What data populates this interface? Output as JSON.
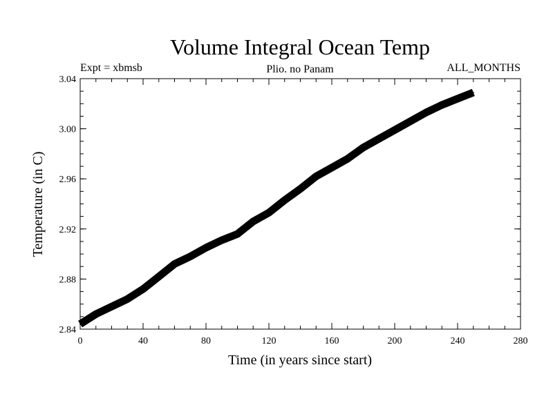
{
  "chart_data": {
    "type": "line",
    "title": "Volume Integral Ocean Temp",
    "subtitle_left": "Expt = xbmsb",
    "subtitle_center": "Plio. no Panam",
    "subtitle_right": "ALL_MONTHS",
    "xlabel": "Time (in years since start)",
    "ylabel": "Temperature (in C)",
    "xlim": [
      0,
      280
    ],
    "ylim": [
      2.84,
      3.04
    ],
    "xticks": [
      "0",
      "40",
      "80",
      "120",
      "160",
      "200",
      "240",
      "280"
    ],
    "yticks": [
      "2.84",
      "2.88",
      "2.92",
      "2.96",
      "3.00",
      "3.04"
    ],
    "grid": false,
    "line_color": "#000000",
    "series": [
      {
        "x": [
          0,
          10,
          20,
          30,
          40,
          50,
          60,
          70,
          80,
          90,
          100,
          110,
          120,
          130,
          140,
          150,
          160,
          170,
          180,
          190,
          200,
          210,
          220,
          230,
          240,
          250
        ],
        "values": [
          2.844,
          2.852,
          2.858,
          2.864,
          2.872,
          2.882,
          2.892,
          2.898,
          2.905,
          2.911,
          2.916,
          2.926,
          2.933,
          2.943,
          2.952,
          2.962,
          2.969,
          2.976,
          2.985,
          2.992,
          2.999,
          3.006,
          3.013,
          3.019,
          3.024,
          3.029
        ]
      }
    ]
  }
}
